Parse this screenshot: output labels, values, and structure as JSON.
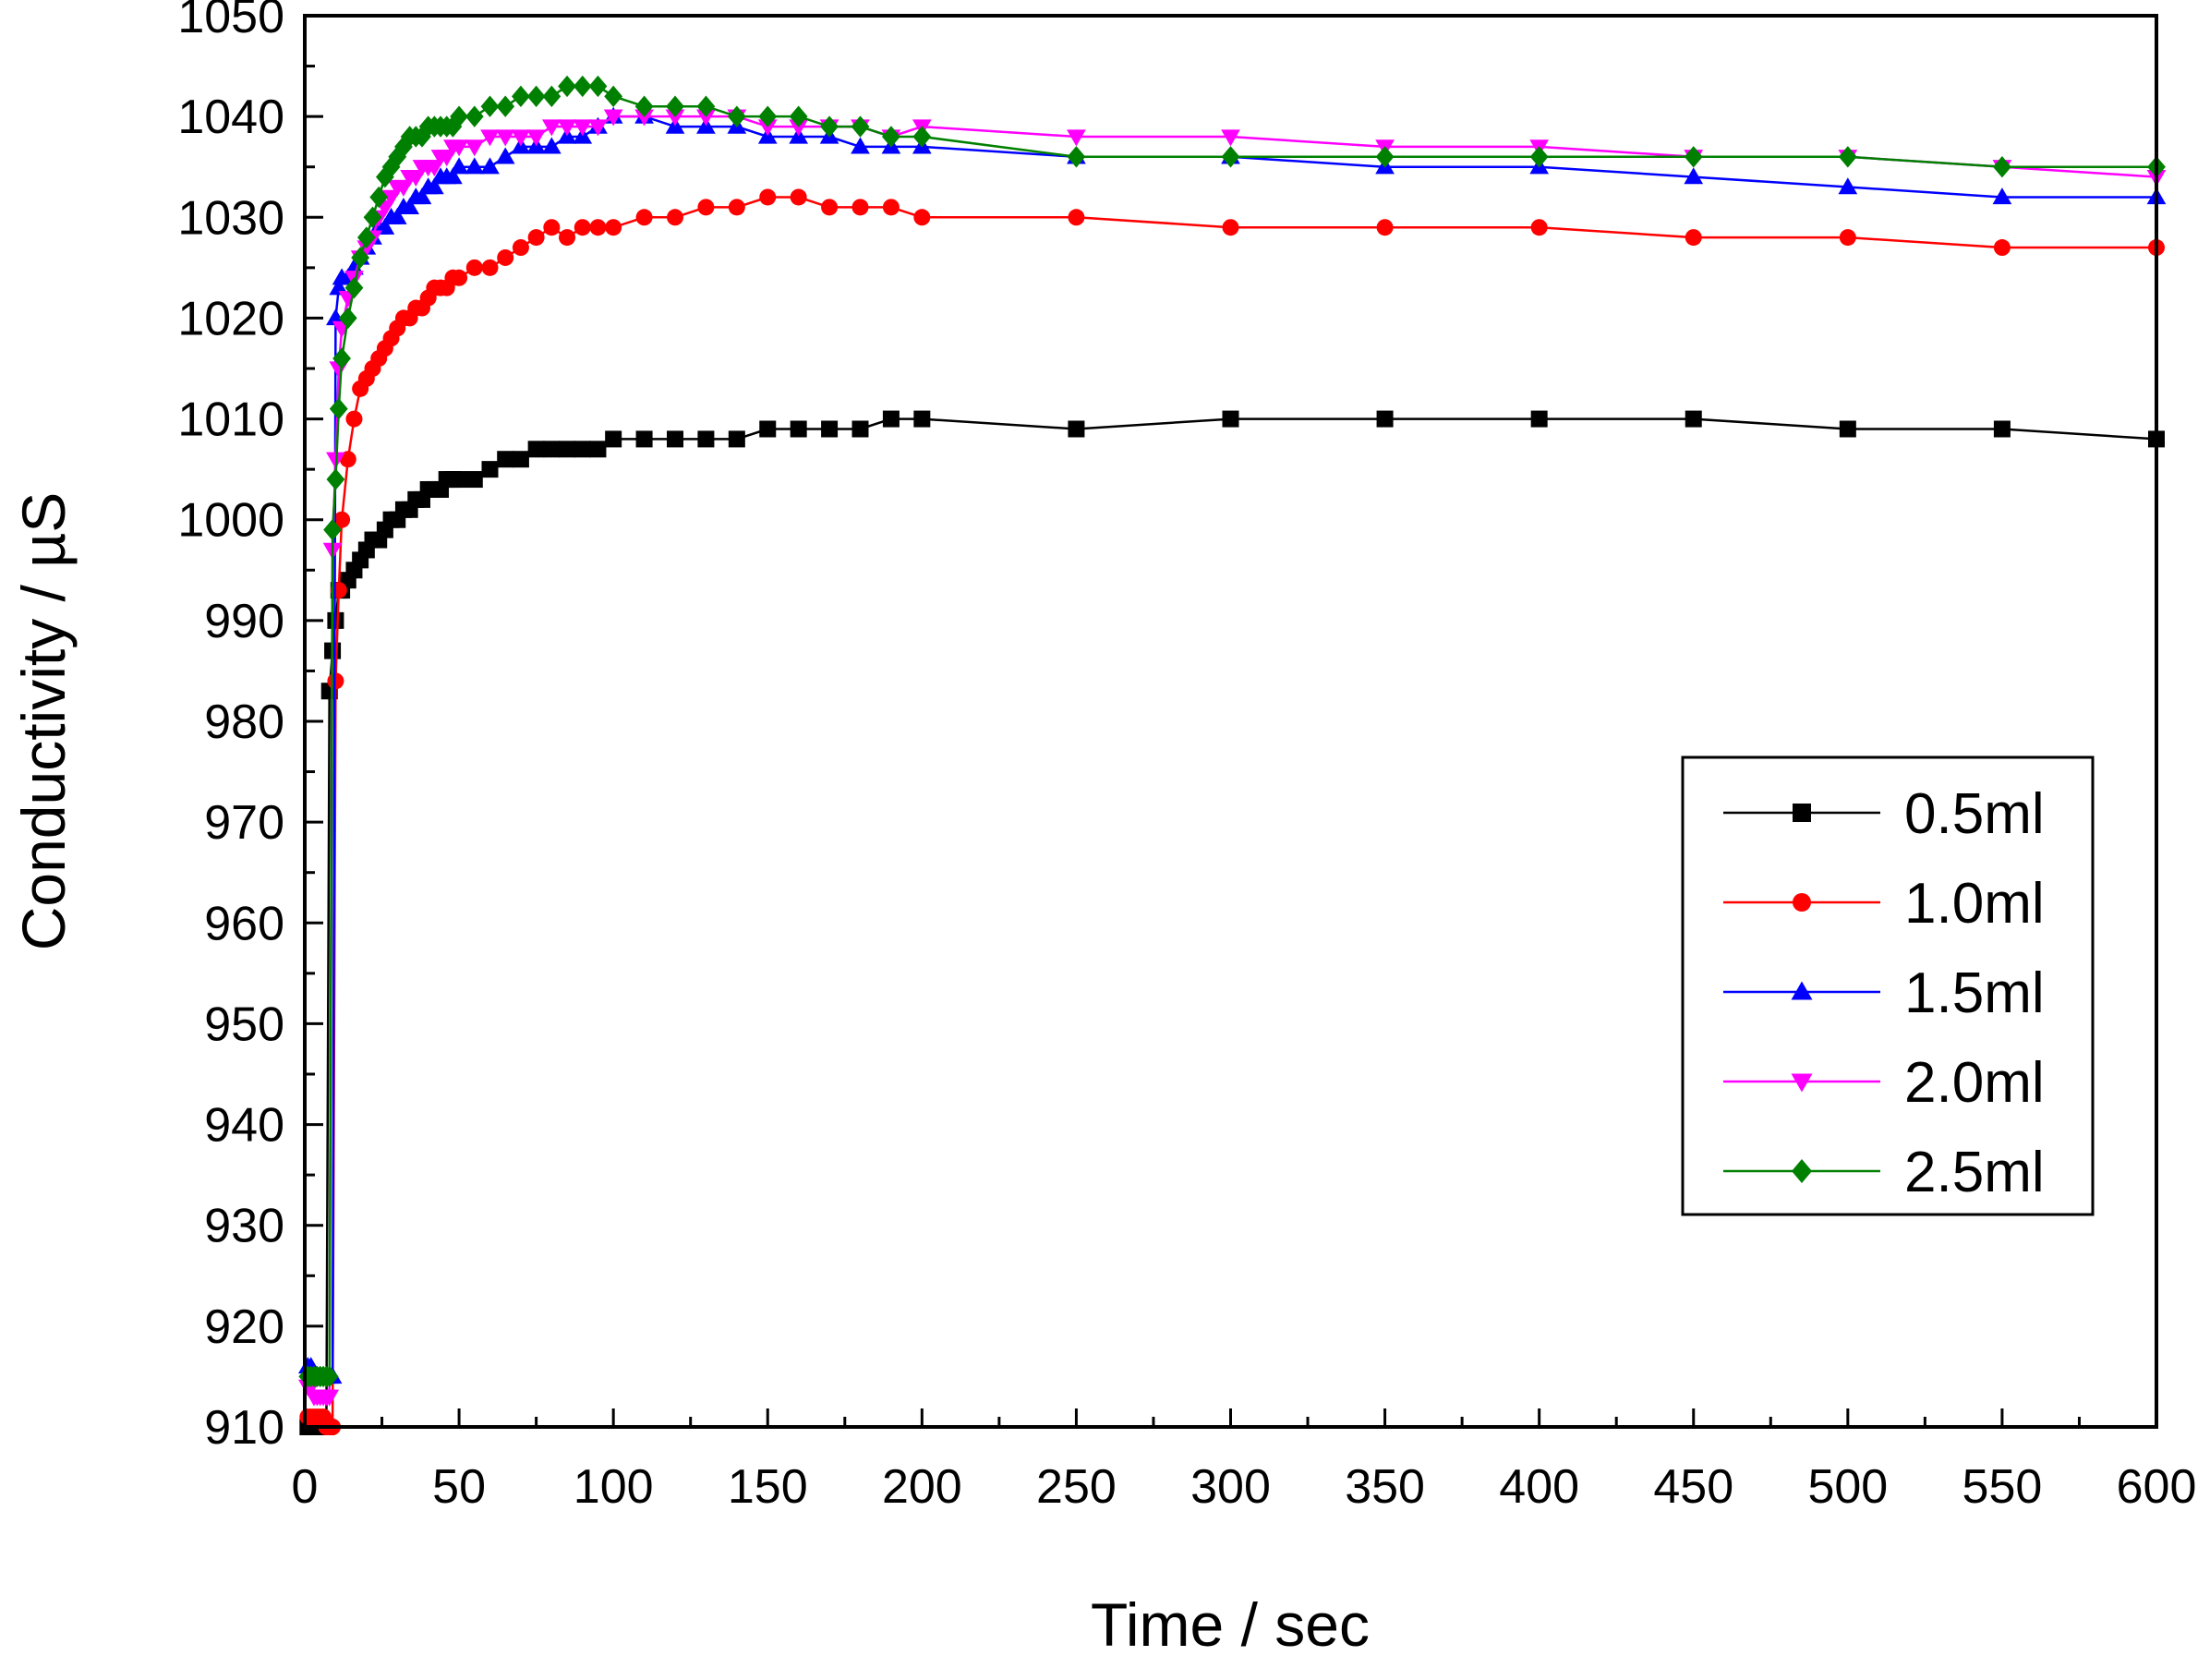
{
  "chart_data": {
    "type": "line",
    "title": "",
    "xlabel": "Time / sec",
    "ylabel": "Conductivity / µS",
    "xlim": [
      0,
      600
    ],
    "ylim": [
      910,
      1050
    ],
    "x_ticks": [
      0,
      50,
      100,
      150,
      200,
      250,
      300,
      350,
      400,
      450,
      500,
      550,
      600
    ],
    "y_ticks": [
      910,
      920,
      930,
      940,
      950,
      960,
      970,
      980,
      990,
      1000,
      1010,
      1020,
      1030,
      1040,
      1050
    ],
    "grid": false,
    "legend_position": "center-right",
    "series": [
      {
        "name": "0.5ml",
        "color": "#000000",
        "marker": "square",
        "x": [
          1,
          2,
          3,
          4,
          5,
          6,
          7,
          8,
          9,
          10,
          11,
          12,
          14,
          16,
          18,
          20,
          22,
          24,
          26,
          28,
          30,
          32,
          34,
          36,
          38,
          40,
          42,
          44,
          46,
          48,
          50,
          55,
          60,
          65,
          70,
          75,
          80,
          85,
          90,
          95,
          100,
          110,
          120,
          130,
          140,
          150,
          160,
          170,
          180,
          190,
          200,
          250,
          300,
          350,
          400,
          450,
          500,
          550,
          600
        ],
        "y": [
          910,
          910,
          910,
          910,
          910,
          910,
          910,
          983,
          987,
          990,
          993,
          993,
          994,
          995,
          996,
          997,
          998,
          998,
          999,
          1000,
          1000,
          1001,
          1001,
          1002,
          1002,
          1003,
          1003,
          1003,
          1004,
          1004,
          1004,
          1004,
          1005,
          1006,
          1006,
          1007,
          1007,
          1007,
          1007,
          1007,
          1008,
          1008,
          1008,
          1008,
          1008,
          1009,
          1009,
          1009,
          1009,
          1010,
          1010,
          1009,
          1010,
          1010,
          1010,
          1010,
          1009,
          1009,
          1008
        ]
      },
      {
        "name": "1.0ml",
        "color": "#ff0000",
        "marker": "circle",
        "x": [
          1,
          2,
          3,
          4,
          5,
          6,
          7,
          8,
          9,
          10,
          11,
          12,
          14,
          16,
          18,
          20,
          22,
          24,
          26,
          28,
          30,
          32,
          34,
          36,
          38,
          40,
          42,
          44,
          46,
          48,
          50,
          55,
          60,
          65,
          70,
          75,
          80,
          85,
          90,
          95,
          100,
          110,
          120,
          130,
          140,
          150,
          160,
          170,
          180,
          190,
          200,
          250,
          300,
          350,
          400,
          450,
          500,
          550,
          600
        ],
        "y": [
          911,
          911,
          911,
          911,
          911,
          911,
          910,
          910,
          910,
          984,
          993,
          1000,
          1006,
          1010,
          1013,
          1014,
          1015,
          1016,
          1017,
          1018,
          1019,
          1020,
          1020,
          1021,
          1021,
          1022,
          1023,
          1023,
          1023,
          1024,
          1024,
          1025,
          1025,
          1026,
          1027,
          1028,
          1029,
          1028,
          1029,
          1029,
          1029,
          1030,
          1030,
          1031,
          1031,
          1032,
          1032,
          1031,
          1031,
          1031,
          1030,
          1030,
          1029,
          1029,
          1029,
          1028,
          1028,
          1027,
          1027
        ]
      },
      {
        "name": "1.5ml",
        "color": "#0000ff",
        "marker": "triangle-up",
        "x": [
          1,
          2,
          3,
          4,
          5,
          6,
          7,
          8,
          9,
          10,
          11,
          12,
          14,
          16,
          18,
          20,
          22,
          24,
          26,
          28,
          30,
          32,
          34,
          36,
          38,
          40,
          42,
          44,
          46,
          48,
          50,
          55,
          60,
          65,
          70,
          75,
          80,
          85,
          90,
          95,
          100,
          110,
          120,
          130,
          140,
          150,
          160,
          170,
          180,
          190,
          200,
          250,
          300,
          350,
          400,
          450,
          500,
          550,
          600
        ],
        "y": [
          916,
          916,
          915,
          915,
          915,
          915,
          915,
          915,
          915,
          1020,
          1023,
          1024,
          1024,
          1025,
          1026,
          1027,
          1028,
          1029,
          1029,
          1030,
          1030,
          1031,
          1031,
          1032,
          1032,
          1033,
          1033,
          1034,
          1034,
          1034,
          1035,
          1035,
          1035,
          1036,
          1037,
          1037,
          1037,
          1038,
          1038,
          1039,
          1040,
          1040,
          1039,
          1039,
          1039,
          1038,
          1038,
          1038,
          1037,
          1037,
          1037,
          1036,
          1036,
          1035,
          1035,
          1034,
          1033,
          1032,
          1032
        ]
      },
      {
        "name": "2.0ml",
        "color": "#ff00ff",
        "marker": "triangle-down",
        "x": [
          1,
          2,
          3,
          4,
          5,
          6,
          7,
          8,
          9,
          10,
          11,
          12,
          14,
          16,
          18,
          20,
          22,
          24,
          26,
          28,
          30,
          32,
          34,
          36,
          38,
          40,
          42,
          44,
          46,
          48,
          50,
          55,
          60,
          65,
          70,
          75,
          80,
          85,
          90,
          95,
          100,
          110,
          120,
          130,
          140,
          150,
          160,
          170,
          180,
          190,
          200,
          250,
          300,
          350,
          400,
          450,
          500,
          550,
          600
        ],
        "y": [
          914,
          914,
          913,
          913,
          913,
          913,
          913,
          913,
          997,
          1006,
          1015,
          1019,
          1022,
          1024,
          1026,
          1027,
          1028,
          1030,
          1031,
          1032,
          1033,
          1033,
          1034,
          1034,
          1035,
          1035,
          1035,
          1036,
          1036,
          1037,
          1037,
          1037,
          1038,
          1038,
          1038,
          1038,
          1039,
          1039,
          1039,
          1039,
          1040,
          1040,
          1040,
          1040,
          1040,
          1039,
          1039,
          1039,
          1039,
          1038,
          1039,
          1038,
          1038,
          1037,
          1037,
          1036,
          1036,
          1035,
          1034
        ]
      },
      {
        "name": "2.5ml",
        "color": "#008000",
        "marker": "diamond",
        "x": [
          1,
          2,
          3,
          4,
          5,
          6,
          7,
          8,
          9,
          10,
          11,
          12,
          14,
          16,
          18,
          20,
          22,
          24,
          26,
          28,
          30,
          32,
          34,
          36,
          38,
          40,
          42,
          44,
          46,
          48,
          50,
          55,
          60,
          65,
          70,
          75,
          80,
          85,
          90,
          95,
          100,
          110,
          120,
          130,
          140,
          150,
          160,
          170,
          180,
          190,
          200,
          250,
          300,
          350,
          400,
          450,
          500,
          550,
          600
        ],
        "y": [
          915,
          915,
          915,
          915,
          915,
          915,
          915,
          915,
          999,
          1004,
          1011,
          1016,
          1020,
          1023,
          1026,
          1028,
          1030,
          1032,
          1034,
          1035,
          1036,
          1037,
          1038,
          1038,
          1038,
          1039,
          1039,
          1039,
          1039,
          1039,
          1040,
          1040,
          1041,
          1041,
          1042,
          1042,
          1042,
          1043,
          1043,
          1043,
          1042,
          1041,
          1041,
          1041,
          1040,
          1040,
          1040,
          1039,
          1039,
          1038,
          1038,
          1036,
          1036,
          1036,
          1036,
          1036,
          1036,
          1035,
          1035
        ]
      }
    ]
  }
}
